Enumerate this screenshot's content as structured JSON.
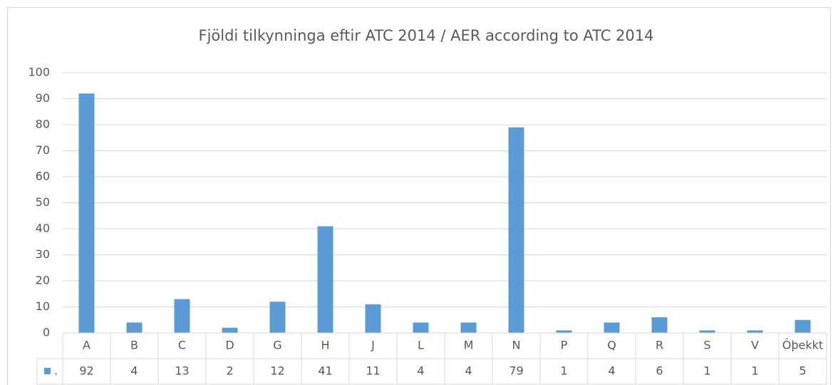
{
  "chart_data": {
    "type": "bar",
    "title": "Fjöldi tilkynninga eftir ATC 2014 / AER according to ATC 2014",
    "categories": [
      "A",
      "B",
      "C",
      "D",
      "G",
      "H",
      "J",
      "L",
      "M",
      "N",
      "P",
      "Q",
      "R",
      "S",
      "V",
      "Óþekkt"
    ],
    "series": [
      {
        "name": ".",
        "color": "#5b9bd5",
        "values": [
          92,
          4,
          13,
          2,
          12,
          41,
          11,
          4,
          4,
          79,
          1,
          4,
          6,
          1,
          1,
          5
        ]
      }
    ],
    "ylim": [
      0,
      100
    ],
    "yticks": [
      0,
      10,
      20,
      30,
      40,
      50,
      60,
      70,
      80,
      90,
      100
    ],
    "grid": true
  }
}
